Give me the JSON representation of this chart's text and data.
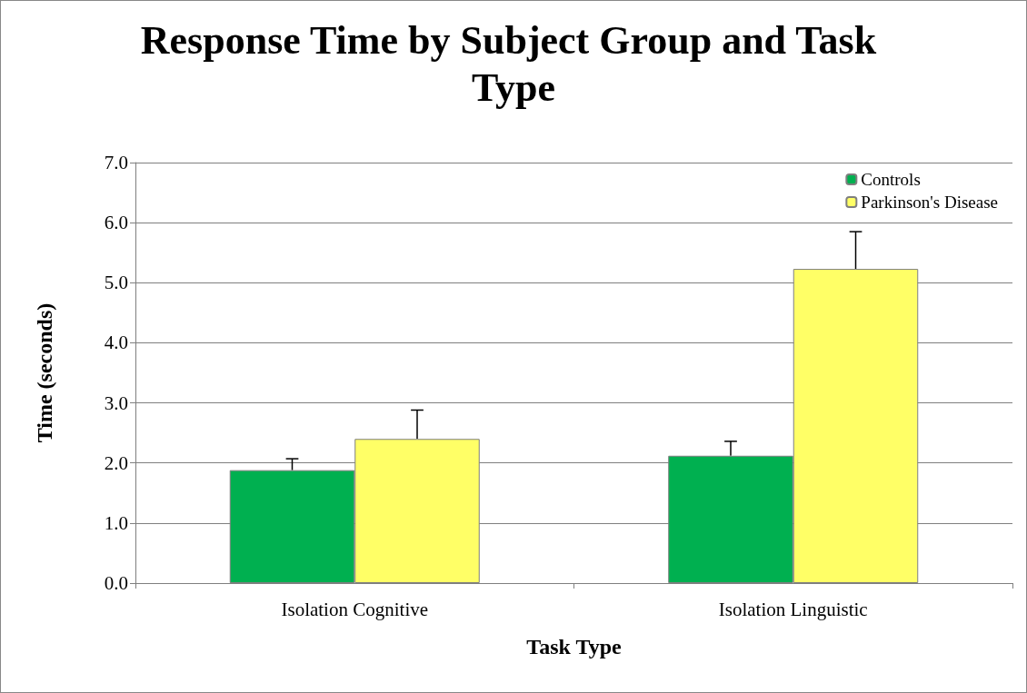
{
  "chart_data": {
    "type": "bar",
    "title": "Response Time by Subject Group and Task Type",
    "xlabel": "Task Type",
    "ylabel": "Time (seconds)",
    "categories": [
      "Isolation Cognitive",
      "Isolation Linguistic"
    ],
    "series": [
      {
        "name": "Controls",
        "color": "#00b050",
        "values": [
          1.88,
          2.12
        ],
        "errors": [
          [
            1.88,
            2.07
          ],
          [
            2.12,
            2.36
          ]
        ]
      },
      {
        "name": "Parkinson's Disease",
        "color": "#ffff66",
        "values": [
          2.4,
          5.23
        ],
        "errors": [
          [
            2.4,
            2.88
          ],
          [
            5.23,
            5.85
          ]
        ]
      }
    ],
    "ylim": [
      0,
      7
    ],
    "yticks": [
      {
        "value": 0,
        "label": "0.0"
      },
      {
        "value": 1,
        "label": "1.0"
      },
      {
        "value": 2,
        "label": "2.0"
      },
      {
        "value": 3,
        "label": "3.0"
      },
      {
        "value": 4,
        "label": "4.0"
      },
      {
        "value": 5,
        "label": "5.0"
      },
      {
        "value": 6,
        "label": "6.0"
      },
      {
        "value": 7,
        "label": "7.0"
      }
    ],
    "grid": "y",
    "legend": "top right"
  }
}
